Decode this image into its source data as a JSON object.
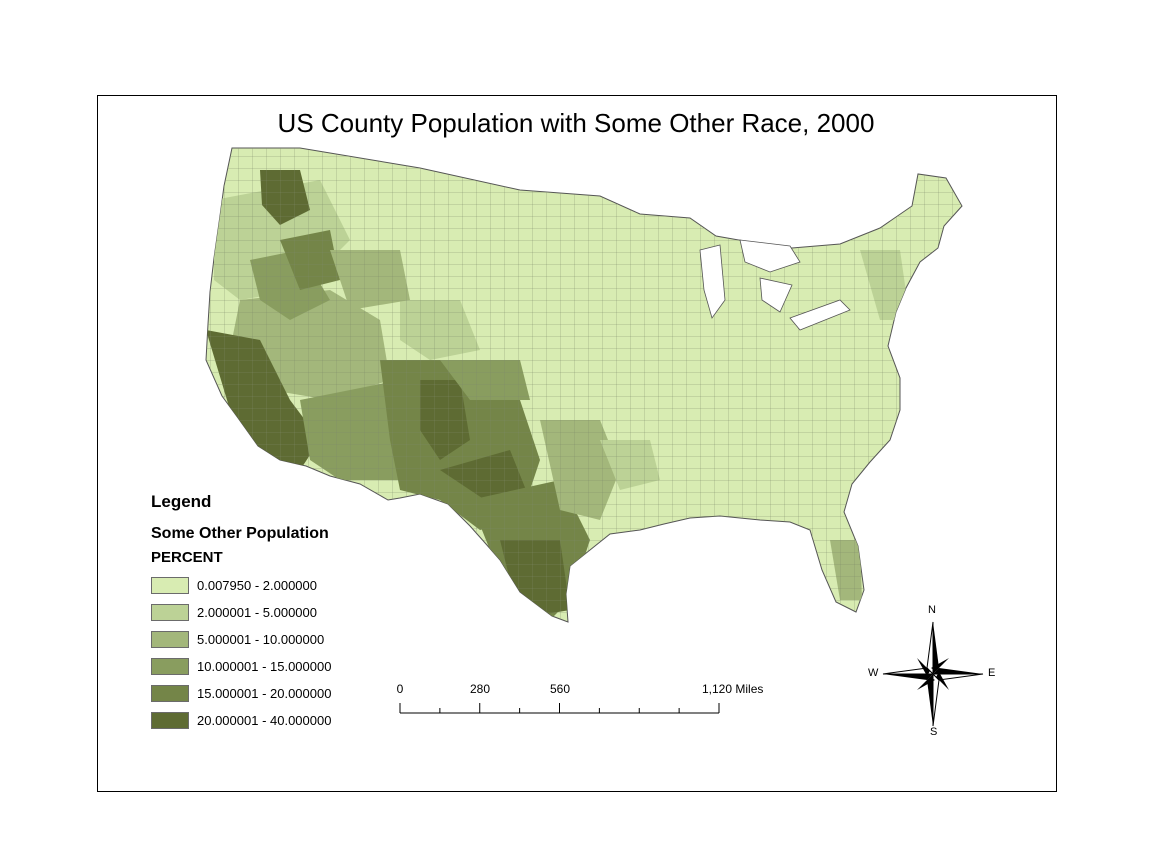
{
  "map": {
    "title": "US County Population with Some Other Race, 2000"
  },
  "legend": {
    "heading": "Legend",
    "layer": "Some Other Population",
    "field": "PERCENT",
    "classes": [
      {
        "label": "0.007950 - 2.000000",
        "color": "#d8ecb2"
      },
      {
        "label": "2.000001 - 5.000000",
        "color": "#bcd296"
      },
      {
        "label": "5.000001 - 10.000000",
        "color": "#a3b77b"
      },
      {
        "label": "10.000001 - 15.000000",
        "color": "#899d5f"
      },
      {
        "label": "15.000001 - 20.000000",
        "color": "#748548"
      },
      {
        "label": "20.000001 - 40.000000",
        "color": "#5e6b33"
      }
    ]
  },
  "scale_bar": {
    "labels": [
      "0",
      "280",
      "560",
      "1,120 Miles"
    ]
  },
  "north_arrow": {
    "n": "N",
    "s": "S",
    "e": "E",
    "w": "W"
  }
}
